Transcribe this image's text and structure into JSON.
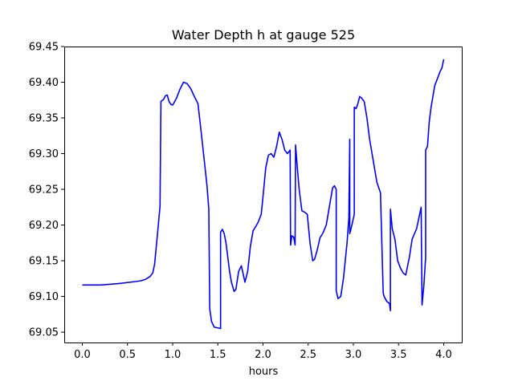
{
  "chart_data": {
    "type": "line",
    "title": "Water Depth h at gauge 525",
    "xlabel": "hours",
    "ylabel": "",
    "xlim": [
      -0.2,
      4.2
    ],
    "ylim": [
      69.0355,
      69.45
    ],
    "xticks": [
      0.0,
      0.5,
      1.0,
      1.5,
      2.0,
      2.5,
      3.0,
      3.5,
      4.0
    ],
    "xtick_labels": [
      "0.0",
      "0.5",
      "1.0",
      "1.5",
      "2.0",
      "2.5",
      "3.0",
      "3.5",
      "4.0"
    ],
    "yticks": [
      69.05,
      69.1,
      69.15,
      69.2,
      69.25,
      69.3,
      69.35,
      69.4,
      69.45
    ],
    "ytick_labels": [
      "69.05",
      "69.10",
      "69.15",
      "69.20",
      "69.25",
      "69.30",
      "69.35",
      "69.40",
      "69.45"
    ],
    "grid": false,
    "line_color": "#0000ff",
    "series": [
      {
        "x": [
          0.0,
          0.2,
          0.4,
          0.6,
          0.65,
          0.7,
          0.75,
          0.78,
          0.8,
          0.83,
          0.86,
          0.87,
          0.9,
          0.92,
          0.94,
          0.96,
          0.98,
          1.0,
          1.04,
          1.08,
          1.12,
          1.16,
          1.2,
          1.24,
          1.28,
          1.32,
          1.35,
          1.38,
          1.4,
          1.41,
          1.43,
          1.46,
          1.5,
          1.53,
          1.53,
          1.55,
          1.57,
          1.59,
          1.61,
          1.63,
          1.65,
          1.68,
          1.7,
          1.73,
          1.76,
          1.8,
          1.83,
          1.86,
          1.89,
          1.92,
          1.95,
          1.98,
          2.0,
          2.03,
          2.06,
          2.09,
          2.12,
          2.15,
          2.18,
          2.21,
          2.24,
          2.27,
          2.3,
          2.305,
          2.32,
          2.34,
          2.355,
          2.36,
          2.38,
          2.4,
          2.43,
          2.46,
          2.49,
          2.52,
          2.55,
          2.57,
          2.6,
          2.63,
          2.66,
          2.7,
          2.74,
          2.77,
          2.79,
          2.81,
          2.81,
          2.83,
          2.86,
          2.89,
          2.93,
          2.95,
          2.96,
          2.96,
          2.98,
          3.01,
          3.01,
          3.03,
          3.05,
          3.07,
          3.09,
          3.12,
          3.15,
          3.18,
          3.22,
          3.26,
          3.3,
          3.33,
          3.34,
          3.37,
          3.4,
          3.41,
          3.41,
          3.43,
          3.46,
          3.49,
          3.52,
          3.55,
          3.58,
          3.62,
          3.65,
          3.7,
          3.75,
          3.76,
          3.78,
          3.8,
          3.8,
          3.82,
          3.84,
          3.86,
          3.88,
          3.9,
          3.93,
          3.96,
          3.98,
          4.0
        ],
        "y": [
          69.116,
          69.116,
          69.118,
          69.121,
          69.122,
          69.124,
          69.128,
          69.133,
          69.145,
          69.185,
          69.226,
          69.373,
          69.376,
          69.381,
          69.382,
          69.373,
          69.369,
          69.368,
          69.377,
          69.39,
          69.4,
          69.398,
          69.391,
          69.38,
          69.37,
          69.325,
          69.29,
          69.255,
          69.222,
          69.083,
          69.065,
          69.057,
          69.056,
          69.055,
          69.19,
          69.194,
          69.188,
          69.175,
          69.155,
          69.135,
          69.12,
          69.107,
          69.11,
          69.135,
          69.143,
          69.12,
          69.135,
          69.17,
          69.192,
          69.198,
          69.205,
          69.215,
          69.24,
          69.28,
          69.298,
          69.3,
          69.295,
          69.31,
          69.33,
          69.32,
          69.305,
          69.3,
          69.305,
          69.172,
          69.185,
          69.183,
          69.172,
          69.312,
          69.28,
          69.25,
          69.22,
          69.218,
          69.215,
          69.175,
          69.15,
          69.152,
          69.165,
          69.182,
          69.188,
          69.2,
          69.23,
          69.252,
          69.255,
          69.25,
          69.108,
          69.097,
          69.1,
          69.125,
          69.175,
          69.21,
          69.32,
          69.188,
          69.198,
          69.215,
          69.365,
          69.363,
          69.37,
          69.38,
          69.378,
          69.373,
          69.35,
          69.32,
          69.29,
          69.26,
          69.245,
          69.105,
          69.1,
          69.093,
          69.09,
          69.08,
          69.222,
          69.195,
          69.18,
          69.15,
          69.14,
          69.133,
          69.13,
          69.155,
          69.18,
          69.195,
          69.225,
          69.088,
          69.115,
          69.155,
          69.305,
          69.31,
          69.345,
          69.365,
          69.38,
          69.395,
          69.405,
          69.415,
          69.42,
          69.432
        ]
      }
    ]
  }
}
